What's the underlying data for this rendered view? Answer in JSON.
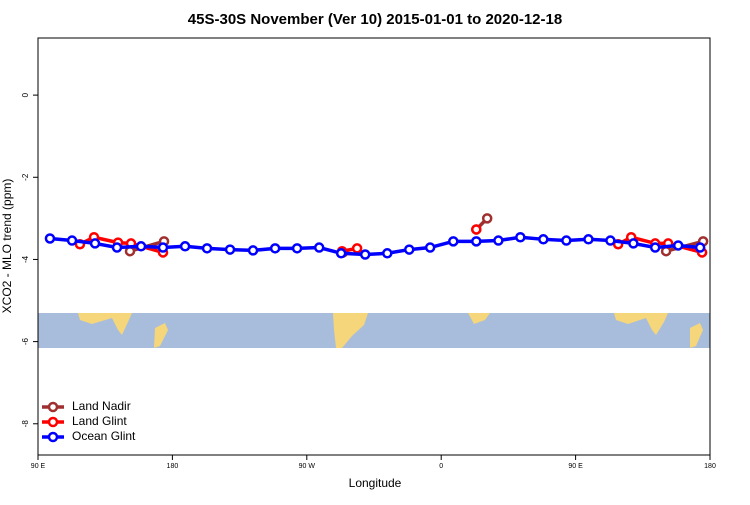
{
  "chart_data": {
    "type": "line",
    "title": "45S-30S November (Ver 10)   2015-01-01 to 2020-12-18",
    "xlabel": "Longitude",
    "ylabel": "XCO2 - MLO trend (ppm)",
    "xlim": [
      90,
      540
    ],
    "ylim": [
      -8.76,
      1.39
    ],
    "xticks": [
      {
        "value": 90,
        "label": "90 E"
      },
      180,
      {
        "value": 270,
        "label": "90 W"
      },
      {
        "value": 360,
        "label": "0"
      },
      {
        "value": 450,
        "label": "90 E"
      },
      {
        "value": 540,
        "label": "180"
      }
    ],
    "yticks": [
      -8,
      -6,
      -4,
      -2,
      0
    ],
    "legend": "bottom-left",
    "series": [
      {
        "name": "Land Nadir",
        "color": "#a03030",
        "x": [
          151.6,
          174.4,
          null,
          294.3,
          null,
          383.5,
          390.8,
          null,
          510.6,
          535.4
        ],
        "values": [
          -3.8,
          -3.56,
          null,
          -3.83,
          null,
          -3.27,
          -3.0,
          null,
          -3.8,
          -3.56
        ]
      },
      {
        "name": "Land Glint",
        "color": "#ff0000",
        "x": [
          118.1,
          127.5,
          143.6,
          152.3,
          173.7,
          null,
          293.6,
          303.7,
          null,
          383.5,
          null,
          478.5,
          487.2,
          503.3,
          512.0,
          534.7
        ],
        "values": [
          -3.63,
          -3.46,
          -3.59,
          -3.61,
          -3.83,
          null,
          -3.8,
          -3.73,
          null,
          -3.27,
          null,
          -3.63,
          -3.46,
          -3.61,
          -3.61,
          -3.83
        ]
      },
      {
        "name": "Ocean Glint",
        "color": "#0000ff",
        "x": [
          98.0,
          112.8,
          128.2,
          142.9,
          159.0,
          173.7,
          188.5,
          203.2,
          218.6,
          234.0,
          248.8,
          263.5,
          278.3,
          293.0,
          309.1,
          323.9,
          338.6,
          352.6,
          368.1,
          383.5,
          398.3,
          413.0,
          428.4,
          443.8,
          458.6,
          473.3,
          488.7,
          503.3,
          518.7,
          533.4
        ],
        "values": [
          -3.49,
          -3.54,
          -3.61,
          -3.71,
          -3.68,
          -3.71,
          -3.68,
          -3.73,
          -3.76,
          -3.78,
          -3.73,
          -3.73,
          -3.71,
          -3.85,
          -3.88,
          -3.85,
          -3.76,
          -3.71,
          -3.56,
          -3.56,
          -3.54,
          -3.46,
          -3.51,
          -3.54,
          -3.51,
          -3.54,
          -3.61,
          -3.71,
          -3.66,
          -3.71
        ]
      }
    ]
  }
}
